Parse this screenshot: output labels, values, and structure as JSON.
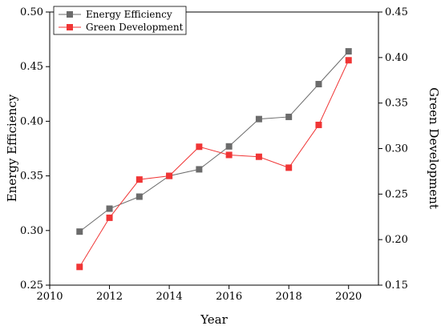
{
  "chart_data": {
    "type": "line",
    "xlabel": "Year",
    "ylabel_left": "Energy Efficiency",
    "ylabel_right": "Green Development",
    "xlim": [
      2010,
      2021
    ],
    "ylim_left": [
      0.25,
      0.5
    ],
    "ylim_right": [
      0.15,
      0.45
    ],
    "x_ticks": [
      2010,
      2012,
      2014,
      2016,
      2018,
      2020
    ],
    "y_left_ticks": [
      0.25,
      0.3,
      0.35,
      0.4,
      0.45,
      0.5
    ],
    "y_right_ticks": [
      0.15,
      0.2,
      0.25,
      0.3,
      0.35,
      0.4,
      0.45
    ],
    "y_left_tick_labels": [
      "0.25",
      "0.30",
      "0.35",
      "0.40",
      "0.45",
      "0.50"
    ],
    "y_right_tick_labels": [
      "0.15",
      "0.20",
      "0.25",
      "0.30",
      "0.35",
      "0.40",
      "0.45"
    ],
    "x": [
      2011,
      2012,
      2013,
      2014,
      2015,
      2016,
      2017,
      2018,
      2019,
      2020
    ],
    "series": [
      {
        "name": "Energy Efficiency",
        "axis": "left",
        "color": "#6b6b6b",
        "marker": "square",
        "values": [
          0.299,
          0.32,
          0.331,
          0.35,
          0.356,
          0.377,
          0.402,
          0.404,
          0.434,
          0.464
        ]
      },
      {
        "name": "Green Development",
        "axis": "right",
        "color": "#f03535",
        "marker": "square",
        "values": [
          0.17,
          0.224,
          0.266,
          0.27,
          0.302,
          0.293,
          0.291,
          0.279,
          0.326,
          0.397
        ]
      }
    ],
    "legend": "top-left",
    "grid": false
  }
}
